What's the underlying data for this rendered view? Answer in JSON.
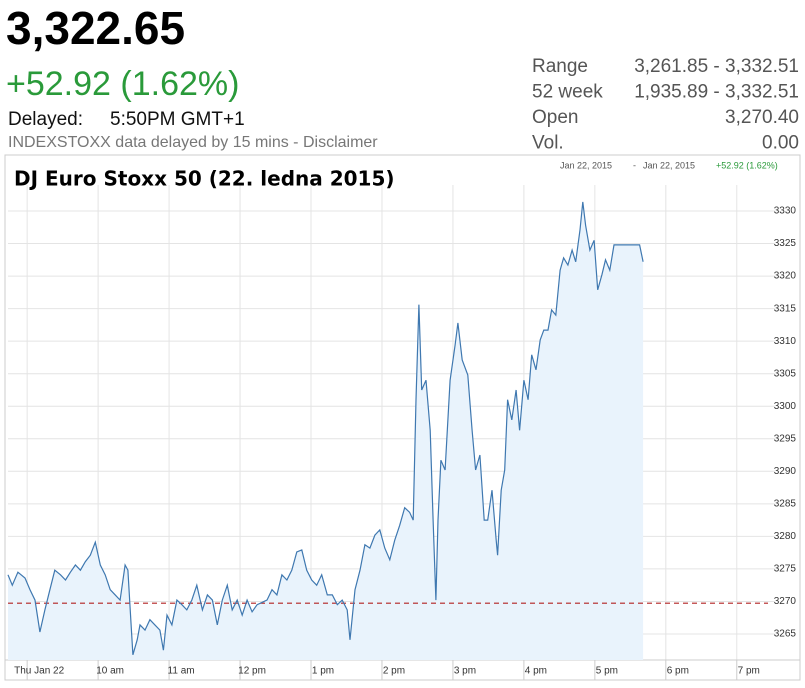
{
  "quote": {
    "price": "3,322.65",
    "change": "+52.92 (1.62%)",
    "delayed_label": "Delayed:",
    "time": "5:50PM GMT+1",
    "note": "INDEXSTOXX data delayed by 15 mins - Disclaimer"
  },
  "stats": [
    {
      "label": "Range",
      "value": "3,261.85 - 3,332.51"
    },
    {
      "label": "52 week",
      "value": "1,935.89 - 3,332.51"
    },
    {
      "label": "Open",
      "value": "3,270.40"
    },
    {
      "label": "Vol.",
      "value": "0.00"
    }
  ],
  "chart_data": {
    "type": "line",
    "title": "DJ Euro Stoxx 50 (22. ledna 2015)",
    "range_header": {
      "start": "Jan 22, 2015",
      "separator": "-",
      "end": "Jan 22, 2015",
      "change": "+52.92 (1.62%)"
    },
    "color": "#3f78b0",
    "fill": "#e9f3fc",
    "grid": true,
    "previous_close": 3269.73,
    "previous_close_color": "#b22222",
    "xlim": [
      8.73,
      19.44
    ],
    "xticks": [
      {
        "value": 9,
        "label": "Thu Jan 22"
      },
      {
        "value": 10,
        "label": "10 am"
      },
      {
        "value": 11,
        "label": "11 am"
      },
      {
        "value": 12,
        "label": "12 pm"
      },
      {
        "value": 13,
        "label": "1 pm"
      },
      {
        "value": 14,
        "label": "2 pm"
      },
      {
        "value": 15,
        "label": "3 pm"
      },
      {
        "value": 16,
        "label": "4 pm"
      },
      {
        "value": 17,
        "label": "5 pm"
      },
      {
        "value": 18,
        "label": "6 pm"
      },
      {
        "value": 19,
        "label": "7 pm"
      }
    ],
    "ylim": [
      3261,
      3334
    ],
    "yticks": [
      3265,
      3270,
      3275,
      3280,
      3285,
      3290,
      3295,
      3300,
      3305,
      3310,
      3315,
      3320,
      3325,
      3330
    ],
    "x": [
      8.73,
      8.79,
      8.87,
      8.97,
      9.04,
      9.11,
      9.18,
      9.25,
      9.32,
      9.39,
      9.47,
      9.54,
      9.61,
      9.68,
      9.75,
      9.82,
      9.89,
      9.96,
      10.03,
      10.1,
      10.17,
      10.24,
      10.31,
      10.38,
      10.42,
      10.45,
      10.49,
      10.55,
      10.59,
      10.66,
      10.73,
      10.8,
      10.87,
      10.92,
      10.97,
      11.04,
      11.11,
      11.18,
      11.25,
      11.32,
      11.39,
      11.47,
      11.54,
      11.61,
      11.68,
      11.75,
      11.82,
      11.89,
      11.96,
      12.03,
      12.1,
      12.17,
      12.24,
      12.38,
      12.45,
      12.52,
      12.59,
      12.66,
      12.73,
      12.8,
      12.87,
      12.94,
      13.01,
      13.08,
      13.15,
      13.23,
      13.3,
      13.37,
      13.44,
      13.51,
      13.55,
      13.62,
      13.69,
      13.76,
      13.83,
      13.9,
      13.97,
      14.04,
      14.11,
      14.18,
      14.25,
      14.32,
      14.39,
      14.44,
      14.48,
      14.52,
      14.56,
      14.62,
      14.68,
      14.72,
      14.76,
      14.79,
      14.83,
      14.89,
      14.96,
      15.03,
      15.07,
      15.13,
      15.21,
      15.27,
      15.32,
      15.38,
      15.44,
      15.49,
      15.55,
      15.61,
      15.63,
      15.68,
      15.73,
      15.77,
      15.83,
      15.89,
      15.94,
      16.0,
      16.06,
      16.11,
      16.17,
      16.23,
      16.28,
      16.34,
      16.39,
      16.45,
      16.51,
      16.56,
      16.62,
      16.68,
      16.73,
      16.79,
      16.83,
      16.87,
      16.93,
      16.99,
      17.04,
      17.1,
      17.15,
      17.21,
      17.27,
      17.35,
      17.49,
      17.63,
      17.68
    ],
    "values": [
      3274.1,
      3272.5,
      3274.5,
      3273.6,
      3271.8,
      3270.2,
      3265.3,
      3268.7,
      3271.8,
      3274.8,
      3274.1,
      3273.3,
      3274.5,
      3275.6,
      3274.8,
      3276.1,
      3277.1,
      3279.1,
      3275.6,
      3274.1,
      3271.8,
      3271.0,
      3270.2,
      3275.6,
      3274.8,
      3269.0,
      3261.8,
      3264.1,
      3266.4,
      3265.6,
      3267.2,
      3266.4,
      3265.6,
      3262.5,
      3267.9,
      3266.4,
      3270.2,
      3269.5,
      3268.7,
      3270.2,
      3272.5,
      3268.7,
      3271.0,
      3270.2,
      3266.4,
      3270.2,
      3272.5,
      3268.7,
      3270.2,
      3267.9,
      3270.2,
      3268.4,
      3269.5,
      3270.2,
      3271.8,
      3271.0,
      3274.1,
      3273.3,
      3274.8,
      3277.6,
      3277.9,
      3274.8,
      3273.3,
      3272.5,
      3274.1,
      3271.0,
      3271.0,
      3269.5,
      3270.2,
      3268.7,
      3264.1,
      3271.8,
      3274.8,
      3278.7,
      3278.2,
      3280.2,
      3281.0,
      3278.2,
      3276.4,
      3279.4,
      3281.7,
      3284.4,
      3283.7,
      3282.5,
      3301.0,
      3315.6,
      3302.5,
      3304.0,
      3296.3,
      3282.5,
      3270.2,
      3282.5,
      3291.7,
      3290.2,
      3304.0,
      3309.4,
      3312.8,
      3307.1,
      3304.8,
      3296.3,
      3290.2,
      3292.5,
      3282.5,
      3282.5,
      3287.1,
      3279.4,
      3277.1,
      3287.1,
      3290.2,
      3301.0,
      3297.9,
      3302.5,
      3296.3,
      3304.0,
      3301.0,
      3307.9,
      3305.6,
      3310.2,
      3311.7,
      3311.7,
      3314.8,
      3314.0,
      3320.9,
      3322.8,
      3321.7,
      3324.0,
      3322.2,
      3327.1,
      3331.4,
      3327.8,
      3324.0,
      3325.5,
      3317.9,
      3320.2,
      3322.5,
      3320.9,
      3324.8,
      3324.8,
      3324.8,
      3324.8,
      3322.2
    ]
  }
}
